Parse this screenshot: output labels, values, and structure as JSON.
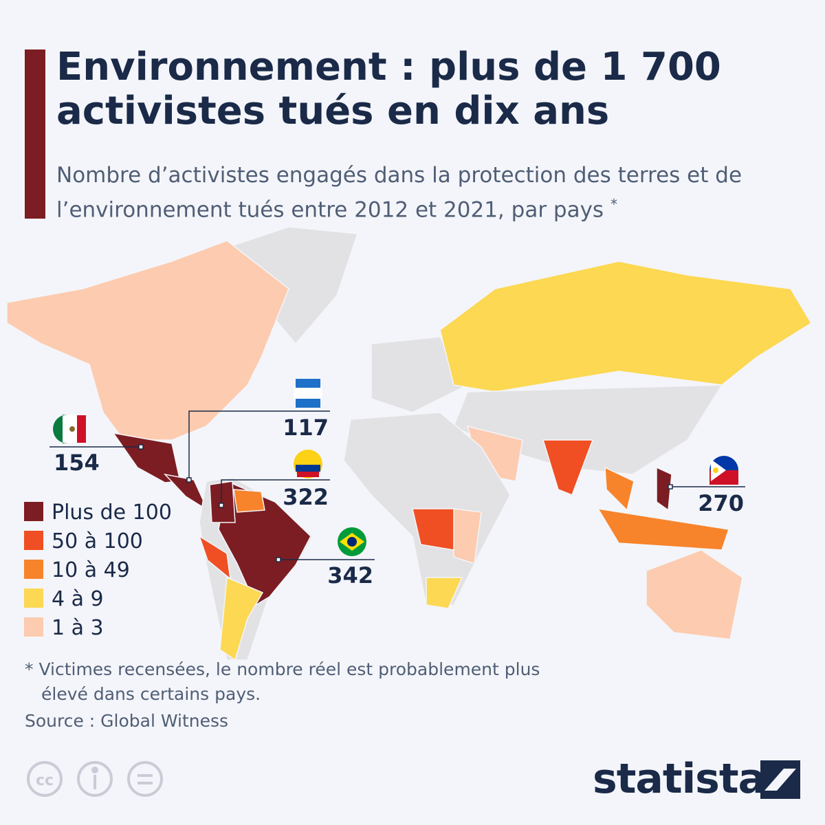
{
  "header": {
    "title": "Environnement : plus de 1 700 activistes tués en dix ans",
    "subtitle": "Nombre d’activistes engagés dans la protection des terres et de l’environnement tués entre 2012 et 2021, par pays",
    "subtitle_mark": "*"
  },
  "legend": [
    {
      "label": "Plus de 100",
      "color": "#7b1d22"
    },
    {
      "label": "50 à 100",
      "color": "#f04e23"
    },
    {
      "label": "10 à 49",
      "color": "#f7842b"
    },
    {
      "label": "4 à 9",
      "color": "#fcd853"
    },
    {
      "label": "1 à 3",
      "color": "#fdcbaf"
    }
  ],
  "callouts": [
    {
      "value": 154
    },
    {
      "value": 117
    },
    {
      "value": 322
    },
    {
      "value": 342
    },
    {
      "value": 270
    }
  ],
  "footnote": "* Victimes recensées, le nombre réel est probablement plus élevé dans certains pays.",
  "source": "Source : Global Witness",
  "brand": "statista"
}
